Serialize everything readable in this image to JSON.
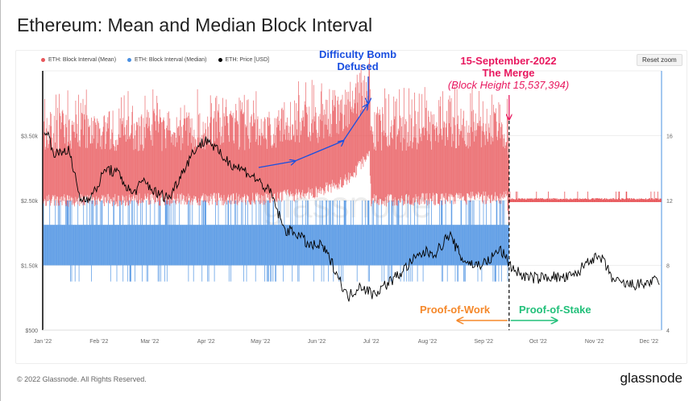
{
  "title": "Ethereum: Mean and Median Block Interval",
  "reset_zoom": "Reset zoom",
  "footer": "© 2022 Glassnode. All Rights Reserved.",
  "brand": "glassnode",
  "watermark": "glassnode",
  "colors": {
    "mean": "#e8575b",
    "median": "#4a90e2",
    "price": "#000000",
    "bomb": "#1a4fe0",
    "merge": "#e8185f",
    "pow": "#f5882a",
    "pos": "#22c07a"
  },
  "annotations": {
    "bomb_line1": "Difficulty Bomb",
    "bomb_line2": "Defused",
    "merge_line1": "15-September-2022",
    "merge_line2": "The Merge",
    "merge_line3": "(Block Height 15,537,394)",
    "pow": "Proof-of-Work",
    "pos": "Proof-of-Stake"
  },
  "chart_data": {
    "type": "line",
    "legend": [
      "ETH: Block Interval (Mean)",
      "ETH: Block Interval (Median)",
      "ETH: Price [USD]"
    ],
    "legend_position": "top-left",
    "x_ticks": [
      "Jan '22",
      "Feb '22",
      "Mar '22",
      "Apr '22",
      "May '22",
      "Jun '22",
      "Jul '22",
      "Aug '22",
      "Sep '22",
      "Oct '22",
      "Nov '22",
      "Dec '22"
    ],
    "x_range": [
      "2022-01-01",
      "2022-12-08"
    ],
    "y_left": {
      "ticks": [
        "$500",
        "$1.50k",
        "$2.50k",
        "$3.50k"
      ],
      "range": [
        500,
        4500
      ],
      "unit": "USD"
    },
    "y_right": {
      "ticks": [
        "4",
        "8",
        "12",
        "16"
      ],
      "range": [
        4,
        20
      ],
      "unit": "seconds"
    },
    "merge_date": "2022-09-15",
    "series": [
      {
        "name": "ETH: Price [USD]",
        "axis": "left",
        "dates": [
          "2022-01-01",
          "2022-01-08",
          "2022-01-15",
          "2022-01-22",
          "2022-01-29",
          "2022-02-05",
          "2022-02-12",
          "2022-02-19",
          "2022-02-26",
          "2022-03-05",
          "2022-03-12",
          "2022-03-19",
          "2022-03-26",
          "2022-04-02",
          "2022-04-09",
          "2022-04-16",
          "2022-04-23",
          "2022-04-30",
          "2022-05-07",
          "2022-05-14",
          "2022-05-21",
          "2022-05-28",
          "2022-06-04",
          "2022-06-11",
          "2022-06-18",
          "2022-06-25",
          "2022-07-02",
          "2022-07-09",
          "2022-07-16",
          "2022-07-23",
          "2022-07-30",
          "2022-08-06",
          "2022-08-13",
          "2022-08-20",
          "2022-08-27",
          "2022-09-03",
          "2022-09-10",
          "2022-09-17",
          "2022-09-24",
          "2022-10-01",
          "2022-10-08",
          "2022-10-15",
          "2022-10-22",
          "2022-10-29",
          "2022-11-05",
          "2022-11-12",
          "2022-11-19",
          "2022-11-26",
          "2022-12-03",
          "2022-12-08"
        ],
        "values": [
          3700,
          3200,
          3300,
          2500,
          2600,
          3000,
          2900,
          2600,
          2800,
          2600,
          2550,
          2950,
          3300,
          3450,
          3200,
          3050,
          2950,
          2800,
          2600,
          2050,
          2000,
          1800,
          1800,
          1450,
          1000,
          1200,
          1050,
          1200,
          1350,
          1550,
          1700,
          1700,
          1980,
          1600,
          1500,
          1550,
          1750,
          1450,
          1320,
          1300,
          1330,
          1300,
          1350,
          1600,
          1600,
          1250,
          1200,
          1200,
          1250,
          1250
        ]
      },
      {
        "name": "ETH: Block Interval (Mean)",
        "axis": "right",
        "dates": [
          "2022-01-01",
          "2022-05-01",
          "2022-06-01",
          "2022-06-20",
          "2022-06-30",
          "2022-07-01",
          "2022-09-14",
          "2022-09-15",
          "2022-12-08"
        ],
        "values": [
          13.8,
          13.9,
          14.3,
          15.2,
          16.8,
          13.8,
          14.0,
          12.05,
          12.05
        ]
      },
      {
        "name": "ETH: Block Interval (Median)",
        "axis": "right",
        "dates": [
          "2022-01-01",
          "2022-06-01",
          "2022-06-30",
          "2022-07-01",
          "2022-09-14"
        ],
        "values": [
          9.3,
          9.4,
          10.2,
          9.3,
          9.3
        ]
      }
    ]
  }
}
